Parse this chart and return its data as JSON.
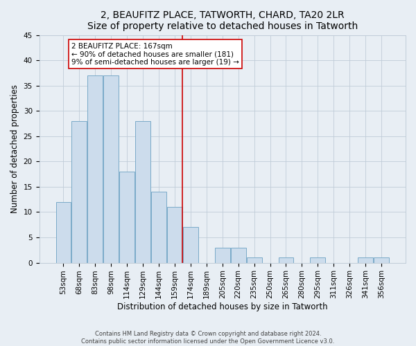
{
  "title": "2, BEAUFITZ PLACE, TATWORTH, CHARD, TA20 2LR",
  "subtitle": "Size of property relative to detached houses in Tatworth",
  "xlabel": "Distribution of detached houses by size in Tatworth",
  "ylabel": "Number of detached properties",
  "categories": [
    "53sqm",
    "68sqm",
    "83sqm",
    "98sqm",
    "114sqm",
    "129sqm",
    "144sqm",
    "159sqm",
    "174sqm",
    "189sqm",
    "205sqm",
    "220sqm",
    "235sqm",
    "250sqm",
    "265sqm",
    "280sqm",
    "295sqm",
    "311sqm",
    "326sqm",
    "341sqm",
    "356sqm"
  ],
  "values": [
    12,
    28,
    37,
    37,
    18,
    28,
    14,
    11,
    7,
    0,
    3,
    3,
    1,
    0,
    1,
    0,
    1,
    0,
    0,
    1,
    1
  ],
  "bar_color": "#ccdcec",
  "bar_edge_color": "#7aaac8",
  "highlight_line_index": 8,
  "highlight_line_color": "#cc0000",
  "annotation_line1": "2 BEAUFITZ PLACE: 167sqm",
  "annotation_line2": "← 90% of detached houses are smaller (181)",
  "annotation_line3": "9% of semi-detached houses are larger (19) →",
  "ylim": [
    0,
    45
  ],
  "yticks": [
    0,
    5,
    10,
    15,
    20,
    25,
    30,
    35,
    40,
    45
  ],
  "title_fontsize": 10,
  "xlabel_fontsize": 8.5,
  "ylabel_fontsize": 8.5,
  "tick_fontsize": 7.5,
  "annotation_fontsize": 7.5,
  "footer_line1": "Contains HM Land Registry data © Crown copyright and database right 2024.",
  "footer_line2": "Contains public sector information licensed under the Open Government Licence v3.0.",
  "background_color": "#e8eef4",
  "plot_background_color": "#e8eef4",
  "grid_color": "#c0ccd8"
}
